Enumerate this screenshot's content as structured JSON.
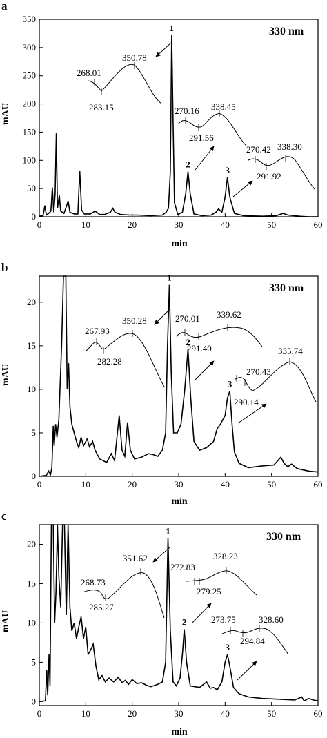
{
  "chart_data": [
    {
      "type": "line",
      "panel_label": "a",
      "wavelength": "330 nm",
      "xlabel": "min",
      "ylabel": "mAU",
      "xlim": [
        0,
        60
      ],
      "ylim": [
        0,
        350
      ],
      "xticks": [
        0,
        10,
        20,
        30,
        40,
        50,
        60
      ],
      "yticks": [
        0,
        50,
        100,
        150,
        200,
        250,
        300,
        350
      ],
      "peak_labels": [
        {
          "label": "1",
          "x": 28.5,
          "y": 322
        },
        {
          "label": "2",
          "x": 32.0,
          "y": 80
        },
        {
          "label": "3",
          "x": 40.5,
          "y": 70
        }
      ],
      "series": [
        {
          "points": [
            [
              0,
              1
            ],
            [
              0.8,
              2
            ],
            [
              1.2,
              20
            ],
            [
              1.5,
              3
            ],
            [
              2.0,
              6
            ],
            [
              2.5,
              10
            ],
            [
              2.8,
              52
            ],
            [
              3.1,
              8
            ],
            [
              3.4,
              40
            ],
            [
              3.65,
              148
            ],
            [
              3.9,
              15
            ],
            [
              4.3,
              38
            ],
            [
              4.6,
              10
            ],
            [
              5.3,
              6
            ],
            [
              5.9,
              20
            ],
            [
              6.2,
              28
            ],
            [
              6.6,
              8
            ],
            [
              7.5,
              5
            ],
            [
              8.3,
              5
            ],
            [
              8.7,
              82
            ],
            [
              9.1,
              12
            ],
            [
              9.7,
              5
            ],
            [
              11.0,
              5
            ],
            [
              12.0,
              10
            ],
            [
              13.0,
              4
            ],
            [
              14.0,
              4
            ],
            [
              15.3,
              8
            ],
            [
              15.8,
              15
            ],
            [
              16.3,
              8
            ],
            [
              17.5,
              4
            ],
            [
              19.5,
              3
            ],
            [
              21.0,
              3
            ],
            [
              24.0,
              2
            ],
            [
              26.5,
              3
            ],
            [
              27.3,
              8
            ],
            [
              27.8,
              15
            ],
            [
              28.2,
              80
            ],
            [
              28.5,
              322
            ],
            [
              28.8,
              170
            ],
            [
              29.1,
              25
            ],
            [
              29.8,
              4
            ],
            [
              30.8,
              8
            ],
            [
              31.5,
              40
            ],
            [
              32.0,
              80
            ],
            [
              32.5,
              40
            ],
            [
              33.3,
              5
            ],
            [
              35.0,
              2
            ],
            [
              37.0,
              3
            ],
            [
              38.0,
              8
            ],
            [
              38.6,
              14
            ],
            [
              39.3,
              8
            ],
            [
              40.0,
              35
            ],
            [
              40.5,
              70
            ],
            [
              41.0,
              35
            ],
            [
              42.0,
              6
            ],
            [
              44.0,
              2
            ],
            [
              48.0,
              1
            ],
            [
              51.0,
              2
            ],
            [
              52.5,
              6
            ],
            [
              53.5,
              3
            ],
            [
              56.0,
              1
            ],
            [
              58.0,
              0
            ],
            [
              60.0,
              0
            ]
          ]
        }
      ],
      "annotations": [
        {
          "text": "268.01"
        },
        {
          "text": "283.15"
        },
        {
          "text": "350.78"
        },
        {
          "text": "270.16"
        },
        {
          "text": "291.56"
        },
        {
          "text": "338.45"
        },
        {
          "text": "270.42"
        },
        {
          "text": "338.30"
        },
        {
          "text": "291.92"
        }
      ]
    },
    {
      "type": "line",
      "panel_label": "b",
      "wavelength": "330 nm",
      "xlabel": "min",
      "ylabel": "mAU",
      "xlim": [
        0,
        60
      ],
      "ylim": [
        0,
        23
      ],
      "xticks": [
        0,
        10,
        20,
        30,
        40,
        50,
        60
      ],
      "yticks": [
        0,
        5,
        10,
        15,
        20
      ],
      "peak_labels": [
        {
          "label": "1",
          "x": 28.0,
          "y": 22.0
        },
        {
          "label": "2",
          "x": 32.0,
          "y": 14.6
        },
        {
          "label": "3",
          "x": 41.0,
          "y": 9.8
        }
      ],
      "series": [
        {
          "points": [
            [
              0,
              0
            ],
            [
              1.5,
              0.1
            ],
            [
              2.0,
              0.6
            ],
            [
              2.4,
              0.2
            ],
            [
              2.7,
              1.0
            ],
            [
              3.0,
              5.8
            ],
            [
              3.2,
              3.5
            ],
            [
              3.5,
              6.0
            ],
            [
              3.8,
              4.5
            ],
            [
              4.2,
              6.5
            ],
            [
              4.8,
              15.0
            ],
            [
              5.2,
              23.0
            ],
            [
              5.7,
              23.0
            ],
            [
              6.0,
              10.0
            ],
            [
              6.3,
              13.0
            ],
            [
              6.6,
              8.0
            ],
            [
              7.0,
              6.0
            ],
            [
              7.5,
              5.0
            ],
            [
              8.0,
              4.0
            ],
            [
              8.5,
              3.3
            ],
            [
              9.0,
              4.5
            ],
            [
              9.5,
              3.5
            ],
            [
              10.3,
              4.3
            ],
            [
              10.8,
              3.4
            ],
            [
              11.5,
              4.0
            ],
            [
              12.0,
              3.0
            ],
            [
              13.0,
              2.0
            ],
            [
              14.5,
              1.6
            ],
            [
              15.5,
              2.6
            ],
            [
              16.2,
              1.8
            ],
            [
              17.2,
              7.0
            ],
            [
              17.8,
              3.0
            ],
            [
              18.4,
              2.3
            ],
            [
              19.0,
              6.2
            ],
            [
              19.6,
              3.0
            ],
            [
              20.5,
              2.0
            ],
            [
              22.0,
              2.2
            ],
            [
              23.5,
              2.6
            ],
            [
              24.5,
              2.5
            ],
            [
              25.5,
              2.3
            ],
            [
              26.5,
              3.0
            ],
            [
              27.2,
              5.0
            ],
            [
              27.6,
              15.0
            ],
            [
              28.0,
              22.0
            ],
            [
              28.4,
              12.0
            ],
            [
              28.9,
              5.0
            ],
            [
              29.7,
              5.0
            ],
            [
              30.5,
              6.0
            ],
            [
              31.3,
              10.0
            ],
            [
              32.0,
              14.6
            ],
            [
              32.6,
              9.0
            ],
            [
              33.3,
              4.0
            ],
            [
              34.5,
              3.0
            ],
            [
              36.0,
              3.3
            ],
            [
              37.5,
              4.0
            ],
            [
              38.3,
              5.5
            ],
            [
              39.0,
              6.0
            ],
            [
              40.0,
              7.0
            ],
            [
              40.5,
              9.0
            ],
            [
              41.0,
              9.8
            ],
            [
              41.5,
              6.0
            ],
            [
              42.0,
              2.8
            ],
            [
              43.0,
              1.5
            ],
            [
              45.0,
              1.0
            ],
            [
              48.0,
              1.2
            ],
            [
              50.5,
              1.3
            ],
            [
              52.0,
              2.2
            ],
            [
              52.7,
              1.5
            ],
            [
              53.5,
              1.1
            ],
            [
              54.3,
              1.4
            ],
            [
              55.5,
              0.9
            ],
            [
              58.0,
              0.6
            ],
            [
              60.0,
              0.5
            ]
          ]
        }
      ],
      "annotations": [
        {
          "text": "267.93"
        },
        {
          "text": "282.28"
        },
        {
          "text": "350.28"
        },
        {
          "text": "270.01"
        },
        {
          "text": "291.40"
        },
        {
          "text": "339.62"
        },
        {
          "text": "270.43"
        },
        {
          "text": "290.14"
        },
        {
          "text": "335.74"
        }
      ]
    },
    {
      "type": "line",
      "panel_label": "c",
      "wavelength": "330 nm",
      "xlabel": "min",
      "ylabel": "mAU",
      "xlim": [
        0,
        60
      ],
      "ylim": [
        -0.5,
        22.5
      ],
      "xticks": [
        0,
        10,
        20,
        30,
        40,
        50,
        60
      ],
      "yticks": [
        0,
        5,
        10,
        15,
        20
      ],
      "peak_labels": [
        {
          "label": "1",
          "x": 27.7,
          "y": 20.8
        },
        {
          "label": "2",
          "x": 31.2,
          "y": 9.2
        },
        {
          "label": "3",
          "x": 40.5,
          "y": 6.0
        }
      ],
      "series": [
        {
          "points": [
            [
              0,
              0
            ],
            [
              1.3,
              0.1
            ],
            [
              1.6,
              4.0
            ],
            [
              1.8,
              0.8
            ],
            [
              2.1,
              6.0
            ],
            [
              2.3,
              2.0
            ],
            [
              2.6,
              22.5
            ],
            [
              3.0,
              22.5
            ],
            [
              3.3,
              10.0
            ],
            [
              3.6,
              14.0
            ],
            [
              3.9,
              22.5
            ],
            [
              4.2,
              16.0
            ],
            [
              4.6,
              12.0
            ],
            [
              5.0,
              22.5
            ],
            [
              5.4,
              22.5
            ],
            [
              5.8,
              11.0
            ],
            [
              6.2,
              22.5
            ],
            [
              6.6,
              12.0
            ],
            [
              7.0,
              9.0
            ],
            [
              7.5,
              10.0
            ],
            [
              8.0,
              8.0
            ],
            [
              8.5,
              9.5
            ],
            [
              9.0,
              10.8
            ],
            [
              9.5,
              8.0
            ],
            [
              10.0,
              9.5
            ],
            [
              10.5,
              6.0
            ],
            [
              11.0,
              6.5
            ],
            [
              11.6,
              7.3
            ],
            [
              12.2,
              4.5
            ],
            [
              12.8,
              2.8
            ],
            [
              13.5,
              3.3
            ],
            [
              14.2,
              2.5
            ],
            [
              15.0,
              3.0
            ],
            [
              16.0,
              2.5
            ],
            [
              17.0,
              3.1
            ],
            [
              17.8,
              2.4
            ],
            [
              18.5,
              2.7
            ],
            [
              19.2,
              2.2
            ],
            [
              20.0,
              2.8
            ],
            [
              21.0,
              2.3
            ],
            [
              22.0,
              2.4
            ],
            [
              23.0,
              2.1
            ],
            [
              24.0,
              1.9
            ],
            [
              25.5,
              2.2
            ],
            [
              26.5,
              2.5
            ],
            [
              27.2,
              5.0
            ],
            [
              27.7,
              20.8
            ],
            [
              28.2,
              9.0
            ],
            [
              28.8,
              2.5
            ],
            [
              29.5,
              2.0
            ],
            [
              30.3,
              3.0
            ],
            [
              30.8,
              6.0
            ],
            [
              31.2,
              9.2
            ],
            [
              31.7,
              5.0
            ],
            [
              32.5,
              2.0
            ],
            [
              34.5,
              1.8
            ],
            [
              36.0,
              2.5
            ],
            [
              36.8,
              1.7
            ],
            [
              37.5,
              1.8
            ],
            [
              38.3,
              1.5
            ],
            [
              39.3,
              2.5
            ],
            [
              40.0,
              5.0
            ],
            [
              40.5,
              6.0
            ],
            [
              41.0,
              4.5
            ],
            [
              41.8,
              1.8
            ],
            [
              43.0,
              1.0
            ],
            [
              45.0,
              0.6
            ],
            [
              48.0,
              0.4
            ],
            [
              52.0,
              0.3
            ],
            [
              55.0,
              0.2
            ],
            [
              56.5,
              0.6
            ],
            [
              57.0,
              0.1
            ],
            [
              58.0,
              0.4
            ],
            [
              59.0,
              0.2
            ],
            [
              60.0,
              0.1
            ]
          ]
        }
      ],
      "annotations": [
        {
          "text": "268.73"
        },
        {
          "text": "285.27"
        },
        {
          "text": "351.62"
        },
        {
          "text": "272.83"
        },
        {
          "text": "279.25"
        },
        {
          "text": "328.23"
        },
        {
          "text": "273.75"
        },
        {
          "text": "294.84"
        },
        {
          "text": "328.60"
        }
      ]
    }
  ]
}
